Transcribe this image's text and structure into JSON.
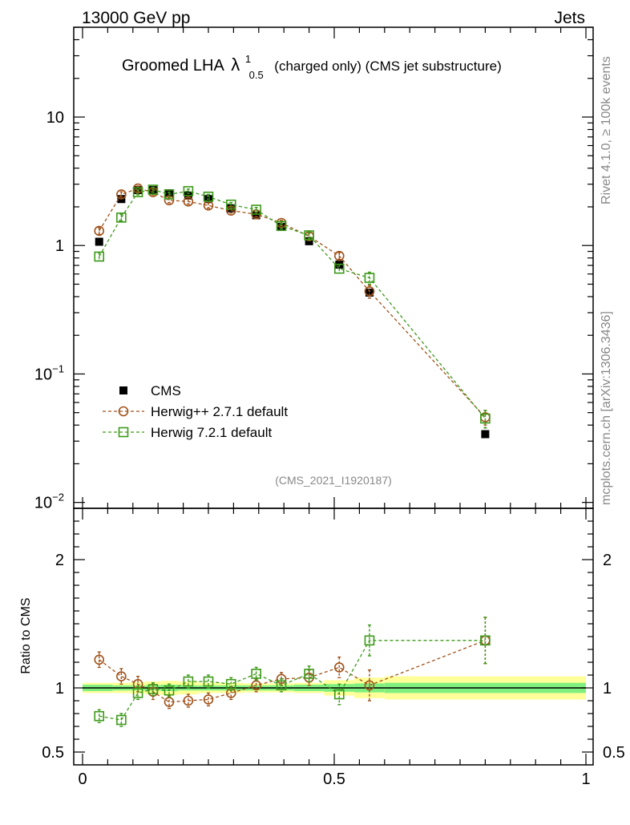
{
  "header": {
    "left": "13000 GeV pp",
    "right": "Jets"
  },
  "side_labels": {
    "rivet": "Rivet 4.1.0, ≥ 100k events",
    "mcplots": "mcplots.cern.ch [arXiv:1306.3436]"
  },
  "chart_data": {
    "type": "scatter",
    "title": {
      "prefix": "Groomed LHA",
      "symbol": "λ",
      "sup": "1",
      "sub": "0.5",
      "suffix": "(charged only) (CMS jet substructure)"
    },
    "analysis_id": "(CMS_2021_I1920187)",
    "xlim": [
      0,
      1
    ],
    "main": {
      "yscale": "log",
      "ylim": [
        0.009,
        50
      ],
      "y_ticks": [
        {
          "value": 10,
          "label": "10"
        },
        {
          "value": 1,
          "label": "1"
        },
        {
          "value": 0.1,
          "base": "10",
          "exp": "−1"
        },
        {
          "value": 0.01,
          "base": "10",
          "exp": "−2"
        }
      ]
    },
    "ratio": {
      "ylabel": "Ratio to CMS",
      "ylim": [
        0.4,
        2.4
      ],
      "y_ticks": [
        {
          "value": 2,
          "label": "2"
        },
        {
          "value": 1,
          "label": "1"
        },
        {
          "value": 0.5,
          "label": "0.5"
        }
      ]
    },
    "x_ticks": [
      {
        "value": 0,
        "label": "0"
      },
      {
        "value": 0.5,
        "label": "0.5"
      },
      {
        "value": 1,
        "label": "1"
      }
    ],
    "bins": [
      {
        "lo": 0.0,
        "hi": 0.06
      },
      {
        "lo": 0.06,
        "hi": 0.095
      },
      {
        "lo": 0.095,
        "hi": 0.125
      },
      {
        "lo": 0.125,
        "hi": 0.155
      },
      {
        "lo": 0.155,
        "hi": 0.19
      },
      {
        "lo": 0.19,
        "hi": 0.23
      },
      {
        "lo": 0.23,
        "hi": 0.27
      },
      {
        "lo": 0.27,
        "hi": 0.32
      },
      {
        "lo": 0.32,
        "hi": 0.37
      },
      {
        "lo": 0.37,
        "hi": 0.42
      },
      {
        "lo": 0.42,
        "hi": 0.48
      },
      {
        "lo": 0.48,
        "hi": 0.54
      },
      {
        "lo": 0.54,
        "hi": 0.6
      },
      {
        "lo": 0.6,
        "hi": 1.0
      }
    ],
    "band_stat": [
      0.025,
      0.02,
      0.02,
      0.02,
      0.025,
      0.02,
      0.02,
      0.02,
      0.02,
      0.02,
      0.025,
      0.03,
      0.035,
      0.04
    ],
    "band_total": [
      0.04,
      0.04,
      0.045,
      0.05,
      0.055,
      0.05,
      0.04,
      0.04,
      0.035,
      0.035,
      0.04,
      0.06,
      0.08,
      0.09
    ],
    "series": [
      {
        "name": "CMS",
        "marker": "filled-square",
        "color": "#000000",
        "x": [
          0.033,
          0.077,
          0.11,
          0.14,
          0.172,
          0.21,
          0.25,
          0.295,
          0.345,
          0.395,
          0.45,
          0.51,
          0.57,
          0.8
        ],
        "y": [
          1.07,
          2.3,
          2.7,
          2.7,
          2.55,
          2.45,
          2.3,
          1.95,
          1.72,
          1.4,
          1.08,
          0.71,
          0.43,
          0.034
        ],
        "yerr": [
          0.04,
          0.06,
          0.06,
          0.06,
          0.05,
          0.05,
          0.05,
          0.04,
          0.04,
          0.03,
          0.03,
          0.02,
          0.03,
          0.003
        ]
      },
      {
        "name": "Herwig++ 2.7.1 default",
        "marker": "open-circle",
        "color": "#a0521a",
        "x": [
          0.033,
          0.077,
          0.11,
          0.14,
          0.172,
          0.21,
          0.25,
          0.295,
          0.345,
          0.395,
          0.45,
          0.51,
          0.57,
          0.8
        ],
        "y": [
          1.3,
          2.5,
          2.78,
          2.6,
          2.25,
          2.2,
          2.05,
          1.87,
          1.75,
          1.5,
          1.18,
          0.83,
          0.44,
          0.046
        ],
        "yerr": [
          0.08,
          0.12,
          0.12,
          0.12,
          0.1,
          0.1,
          0.1,
          0.08,
          0.08,
          0.07,
          0.07,
          0.05,
          0.05,
          0.006
        ],
        "ratio": [
          1.22,
          1.09,
          1.03,
          0.97,
          0.89,
          0.9,
          0.91,
          0.96,
          1.02,
          1.07,
          1.08,
          1.16,
          1.02,
          1.37
        ],
        "ratio_err": [
          0.06,
          0.06,
          0.06,
          0.06,
          0.05,
          0.05,
          0.05,
          0.05,
          0.05,
          0.05,
          0.06,
          0.08,
          0.12,
          0.18
        ]
      },
      {
        "name": "Herwig 7.2.1 default",
        "marker": "open-square",
        "color": "#3d9a1a",
        "x": [
          0.033,
          0.077,
          0.11,
          0.14,
          0.172,
          0.21,
          0.25,
          0.295,
          0.345,
          0.395,
          0.45,
          0.51,
          0.57,
          0.8
        ],
        "y": [
          0.82,
          1.65,
          2.6,
          2.72,
          2.5,
          2.65,
          2.4,
          2.08,
          1.9,
          1.42,
          1.2,
          0.66,
          0.56,
          0.045
        ],
        "yerr": [
          0.06,
          0.1,
          0.12,
          0.12,
          0.1,
          0.1,
          0.1,
          0.08,
          0.08,
          0.07,
          0.07,
          0.05,
          0.06,
          0.007
        ],
        "ratio": [
          0.78,
          0.75,
          0.96,
          0.99,
          0.98,
          1.05,
          1.05,
          1.03,
          1.11,
          1.02,
          1.11,
          0.95,
          1.37,
          1.37
        ],
        "ratio_err": [
          0.05,
          0.05,
          0.05,
          0.05,
          0.05,
          0.05,
          0.05,
          0.05,
          0.05,
          0.05,
          0.06,
          0.08,
          0.12,
          0.18
        ]
      }
    ]
  },
  "colors": {
    "band_stat": "#7ff07f",
    "band_total": "#ffff99",
    "analysis_id": "#888888",
    "side_text": "#888888"
  }
}
